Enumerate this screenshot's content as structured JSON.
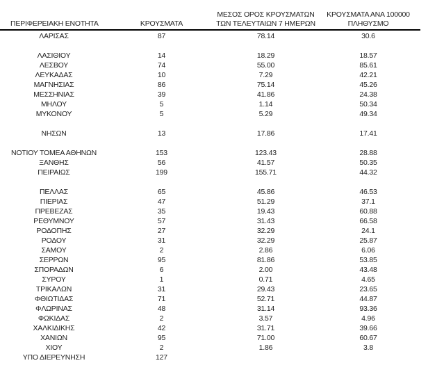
{
  "page": {
    "background_color": "#ffffff",
    "text_color": "#212121",
    "rule_color": "#000000"
  },
  "table": {
    "headers": {
      "region": "ΠΕΡΙΦΕΡΕΙΑΚΗ ΕΝΟΤΗΤΑ",
      "cases": "ΚΡΟΥΣΜΑΤΑ",
      "avg7_line1": "ΜΕΣΟΣ ΟΡΟΣ ΚΡΟΥΣΜΑΤΩΝ",
      "avg7_line2": "ΤΩΝ ΤΕΛΕΥΤΑΙΩΝ 7 ΗΜΕΡΩΝ",
      "per100k_line1": "ΚΡΟΥΣΜΑΤΑ ΑΝΑ 100000",
      "per100k_line2": "ΠΛΗΘΥΣΜΟ"
    },
    "groups": [
      {
        "rows": [
          {
            "region": "ΛΑΡΙΣΑΣ",
            "cases": "87",
            "avg7": "78.14",
            "per100k": "30.6"
          }
        ]
      },
      {
        "rows": [
          {
            "region": "ΛΑΣΙΘΙΟΥ",
            "cases": "14",
            "avg7": "18.29",
            "per100k": "18.57"
          },
          {
            "region": "ΛΕΣΒΟΥ",
            "cases": "74",
            "avg7": "55.00",
            "per100k": "85.61"
          },
          {
            "region": "ΛΕΥΚΑΔΑΣ",
            "cases": "10",
            "avg7": "7.29",
            "per100k": "42.21"
          },
          {
            "region": "ΜΑΓΝΗΣΙΑΣ",
            "cases": "86",
            "avg7": "75.14",
            "per100k": "45.26"
          },
          {
            "region": "ΜΕΣΣΗΝΙΑΣ",
            "cases": "39",
            "avg7": "41.86",
            "per100k": "24.38"
          },
          {
            "region": "ΜΗΛΟΥ",
            "cases": "5",
            "avg7": "1.14",
            "per100k": "50.34"
          },
          {
            "region": "ΜΥΚΟΝΟΥ",
            "cases": "5",
            "avg7": "5.29",
            "per100k": "49.34"
          }
        ]
      },
      {
        "rows": [
          {
            "region": "ΝΗΣΩΝ",
            "cases": "13",
            "avg7": "17.86",
            "per100k": "17.41"
          }
        ]
      },
      {
        "rows": [
          {
            "region": "ΝΟΤΙΟΥ ΤΟΜΕΑ ΑΘΗΝΩΝ",
            "cases": "153",
            "avg7": "123.43",
            "per100k": "28.88"
          },
          {
            "region": "ΞΑΝΘΗΣ",
            "cases": "56",
            "avg7": "41.57",
            "per100k": "50.35"
          },
          {
            "region": "ΠΕΙΡΑΙΩΣ",
            "cases": "199",
            "avg7": "155.71",
            "per100k": "44.32"
          }
        ]
      },
      {
        "rows": [
          {
            "region": "ΠΕΛΛΑΣ",
            "cases": "65",
            "avg7": "45.86",
            "per100k": "46.53"
          },
          {
            "region": "ΠΙΕΡΙΑΣ",
            "cases": "47",
            "avg7": "51.29",
            "per100k": "37.1"
          },
          {
            "region": "ΠΡΕΒΕΖΑΣ",
            "cases": "35",
            "avg7": "19.43",
            "per100k": "60.88"
          },
          {
            "region": "ΡΕΘΥΜΝΟΥ",
            "cases": "57",
            "avg7": "31.43",
            "per100k": "66.58"
          },
          {
            "region": "ΡΟΔΟΠΗΣ",
            "cases": "27",
            "avg7": "32.29",
            "per100k": "24.1"
          },
          {
            "region": "ΡΟΔΟΥ",
            "cases": "31",
            "avg7": "32.29",
            "per100k": "25.87"
          },
          {
            "region": "ΣΑΜΟΥ",
            "cases": "2",
            "avg7": "2.86",
            "per100k": "6.06"
          },
          {
            "region": "ΣΕΡΡΩΝ",
            "cases": "95",
            "avg7": "81.86",
            "per100k": "53.85"
          },
          {
            "region": "ΣΠΟΡΑΔΩΝ",
            "cases": "6",
            "avg7": "2.00",
            "per100k": "43.48"
          },
          {
            "region": "ΣΥΡΟΥ",
            "cases": "1",
            "avg7": "0.71",
            "per100k": "4.65"
          },
          {
            "region": "ΤΡΙΚΑΛΩΝ",
            "cases": "31",
            "avg7": "29.43",
            "per100k": "23.65"
          },
          {
            "region": "ΦΘΙΩΤΙΔΑΣ",
            "cases": "71",
            "avg7": "52.71",
            "per100k": "44.87"
          },
          {
            "region": "ΦΛΩΡΙΝΑΣ",
            "cases": "48",
            "avg7": "31.14",
            "per100k": "93.36"
          },
          {
            "region": "ΦΩΚΙΔΑΣ",
            "cases": "2",
            "avg7": "3.57",
            "per100k": "4.96"
          },
          {
            "region": "ΧΑΛΚΙΔΙΚΗΣ",
            "cases": "42",
            "avg7": "31.71",
            "per100k": "39.66"
          },
          {
            "region": "ΧΑΝΙΩΝ",
            "cases": "95",
            "avg7": "71.00",
            "per100k": "60.67"
          },
          {
            "region": "ΧΙΟΥ",
            "cases": "2",
            "avg7": "1.86",
            "per100k": "3.8"
          },
          {
            "region": "ΥΠΟ ΔΙΕΡΕΥΝΗΣΗ",
            "cases": "127",
            "avg7": "",
            "per100k": ""
          }
        ]
      }
    ]
  }
}
